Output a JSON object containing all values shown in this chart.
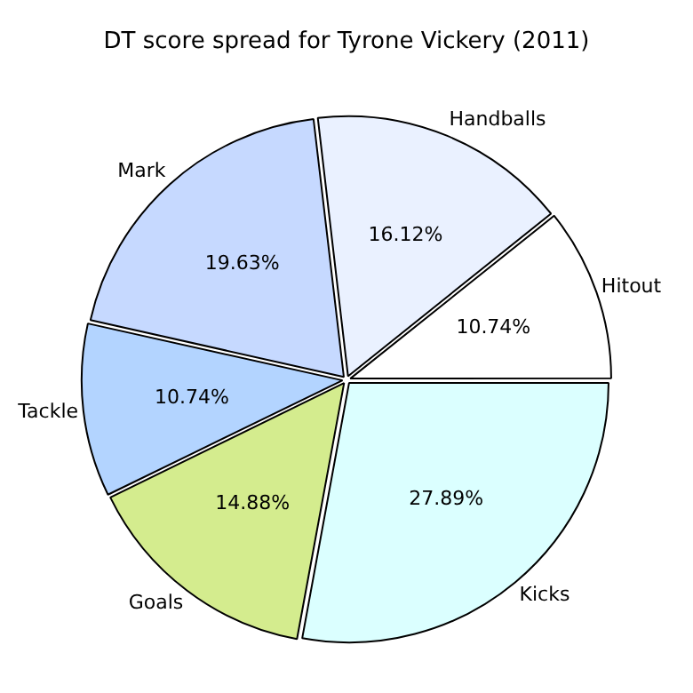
{
  "chart_data": {
    "type": "pie",
    "title": "DT score spread for Tyrone Vickery (2011)",
    "categories": [
      "Hitout",
      "Kicks",
      "Goals",
      "Tackle",
      "Mark",
      "Handballs"
    ],
    "values": [
      10.74,
      27.89,
      14.88,
      10.74,
      19.63,
      16.12
    ],
    "value_labels": [
      "10.74%",
      "27.89%",
      "14.88%",
      "10.74%",
      "19.63%",
      "16.12%"
    ],
    "colors": [
      "#ffffff",
      "#dbffff",
      "#d4ec8e",
      "#b3d4ff",
      "#c6d9ff",
      "#eaf1ff"
    ],
    "legend": false
  }
}
